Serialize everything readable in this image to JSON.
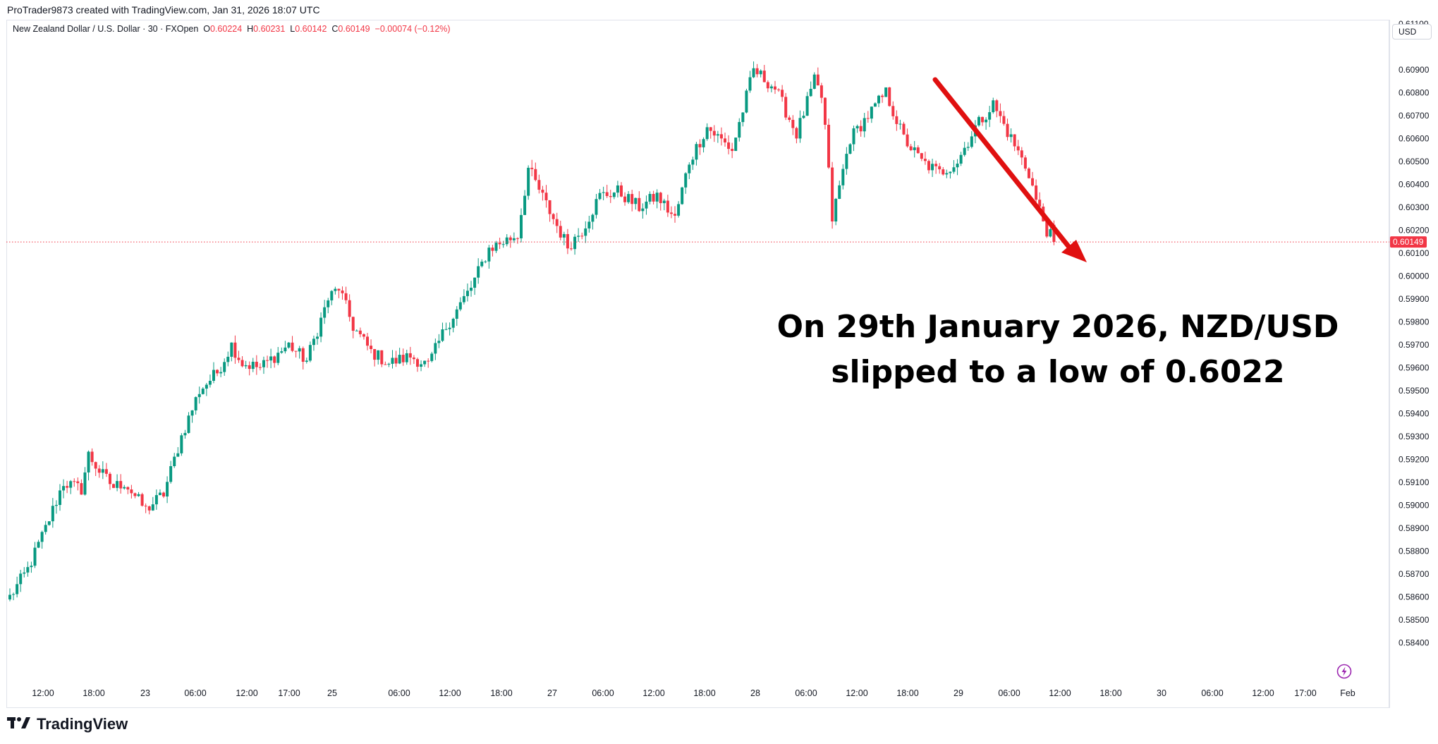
{
  "header": {
    "credit": "ProTrader9873 created with TradingView.com, Jan 31, 2026 18:07 UTC"
  },
  "legend": {
    "symbol": "New Zealand Dollar / U.S. Dollar · 30 · FXOpen",
    "o_label": "O",
    "o_value": "0.60224",
    "h_label": "H",
    "h_value": "0.60231",
    "l_label": "L",
    "l_value": "0.60142",
    "c_label": "C",
    "c_value": "0.60149",
    "change": "−0.00074 (−0.12%)"
  },
  "currency": "USD",
  "annotation": {
    "line1": "On 29th January 2026, NZD/USD",
    "line2": "slipped to a low of 0.6022"
  },
  "brand": {
    "name": "TradingView"
  },
  "colors": {
    "up": "#089981",
    "down": "#f23645",
    "arrow": "#e01010",
    "last_price_bg": "#f23645"
  },
  "icons": {
    "logo": "tradingview-logo-icon",
    "lightning": "lightning-icon",
    "arrow": "red-arrow"
  },
  "chart_data": {
    "type": "candlestick",
    "title": "New Zealand Dollar / U.S. Dollar · 30 · FXOpen",
    "xlabel": "",
    "ylabel": "",
    "ylim": [
      0.5833,
      0.6118
    ],
    "y_ticks": [
      "0.61100",
      "0.60900",
      "0.60800",
      "0.60700",
      "0.60600",
      "0.60500",
      "0.60400",
      "0.60300",
      "0.60200",
      "0.60100",
      "0.60000",
      "0.59900",
      "0.59800",
      "0.59700",
      "0.59600",
      "0.59500",
      "0.59400",
      "0.59300",
      "0.59200",
      "0.59100",
      "0.59000",
      "0.58900",
      "0.58800",
      "0.58700",
      "0.58600",
      "0.58500",
      "0.58400"
    ],
    "x_ticks": [
      "12:00",
      "18:00",
      "23",
      "06:00",
      "12:00",
      "17:00",
      "25",
      "06:00",
      "12:00",
      "18:00",
      "27",
      "06:00",
      "12:00",
      "18:00",
      "28",
      "06:00",
      "12:00",
      "18:00",
      "29",
      "06:00",
      "12:00",
      "18:00",
      "30",
      "06:00",
      "12:00",
      "17:00",
      "Feb"
    ],
    "last_price": "0.60149",
    "grid": false,
    "legend": "top-left",
    "series_path": [
      [
        0,
        0.586
      ],
      [
        5,
        0.5872
      ],
      [
        10,
        0.589
      ],
      [
        15,
        0.591
      ],
      [
        20,
        0.5907
      ],
      [
        22,
        0.5922
      ],
      [
        25,
        0.5915
      ],
      [
        29,
        0.5908
      ],
      [
        32,
        0.591
      ],
      [
        38,
        0.5898
      ],
      [
        43,
        0.5905
      ],
      [
        48,
        0.593
      ],
      [
        53,
        0.595
      ],
      [
        58,
        0.5958
      ],
      [
        62,
        0.597
      ],
      [
        65,
        0.5962
      ],
      [
        70,
        0.596
      ],
      [
        78,
        0.597
      ],
      [
        83,
        0.5963
      ],
      [
        89,
        0.599
      ],
      [
        92,
        0.5995
      ],
      [
        96,
        0.5978
      ],
      [
        101,
        0.5967
      ],
      [
        106,
        0.5962
      ],
      [
        112,
        0.5965
      ],
      [
        117,
        0.5961
      ],
      [
        122,
        0.5978
      ],
      [
        129,
        0.5995
      ],
      [
        134,
        0.6012
      ],
      [
        142,
        0.6018
      ],
      [
        145,
        0.6047
      ],
      [
        152,
        0.6025
      ],
      [
        156,
        0.6013
      ],
      [
        160,
        0.602
      ],
      [
        165,
        0.6035
      ],
      [
        170,
        0.6037
      ],
      [
        176,
        0.603
      ],
      [
        181,
        0.6035
      ],
      [
        186,
        0.6025
      ],
      [
        190,
        0.605
      ],
      [
        195,
        0.6065
      ],
      [
        202,
        0.6055
      ],
      [
        208,
        0.609
      ],
      [
        214,
        0.6082
      ],
      [
        220,
        0.6062
      ],
      [
        225,
        0.6085
      ],
      [
        227,
        0.6078
      ],
      [
        228,
        0.6065
      ],
      [
        230,
        0.6025
      ],
      [
        235,
        0.606
      ],
      [
        240,
        0.607
      ],
      [
        245,
        0.608
      ],
      [
        250,
        0.606
      ],
      [
        255,
        0.605
      ],
      [
        260,
        0.6045
      ],
      [
        265,
        0.605
      ],
      [
        270,
        0.6065
      ],
      [
        275,
        0.6075
      ],
      [
        280,
        0.606
      ],
      [
        285,
        0.6045
      ],
      [
        287,
        0.6033
      ],
      [
        290,
        0.602
      ],
      [
        292,
        0.6015
      ]
    ]
  }
}
